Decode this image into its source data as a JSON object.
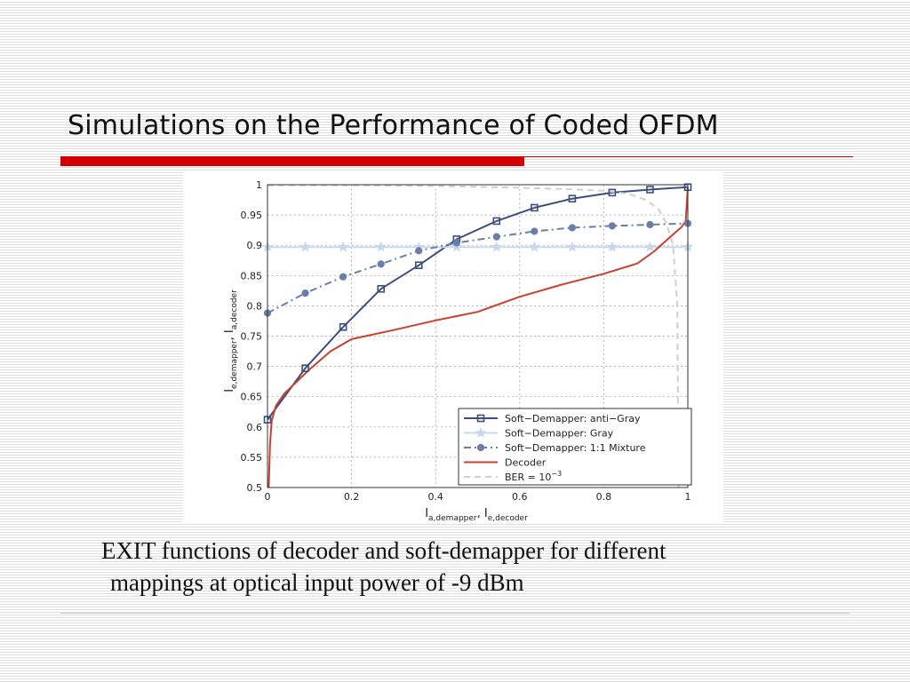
{
  "slide": {
    "title": "Simulations on the Performance of Coded OFDM",
    "caption_line1": "EXIT functions of decoder and soft-demapper for different",
    "caption_line2": "mappings at optical input power of -9 dBm"
  },
  "chart_data": {
    "type": "line",
    "xlabel": {
      "main1": "I",
      "sub1": "a,demapper",
      "sep": ", ",
      "main2": "I",
      "sub2": "e,decoder"
    },
    "ylabel": {
      "main1": "I",
      "sub1": "e,demapper",
      "sep": ", ",
      "main2": "I",
      "sub2": "a,decoder"
    },
    "xlim": [
      0,
      1
    ],
    "ylim": [
      0.5,
      1
    ],
    "x_ticks": [
      0,
      0.2,
      0.4,
      0.6,
      0.8,
      1
    ],
    "y_ticks": [
      0.5,
      0.55,
      0.6,
      0.65,
      0.7,
      0.75,
      0.8,
      0.85,
      0.9,
      0.95,
      1
    ],
    "x_tick_labels": [
      "0",
      "0.2",
      "0.4",
      "0.6",
      "0.8",
      "1"
    ],
    "y_tick_labels": [
      "0.5",
      "0.55",
      "0.6",
      "0.65",
      "0.7",
      "0.75",
      "0.8",
      "0.85",
      "0.9",
      "0.95",
      "1"
    ],
    "grid": true,
    "legend_position": "bottom-right",
    "series": [
      {
        "name": "Soft−Demapper: anti−Gray",
        "color": "#3d4f7c",
        "dash": "solid",
        "marker": "square",
        "x": [
          0,
          0.09,
          0.18,
          0.27,
          0.36,
          0.45,
          0.545,
          0.635,
          0.725,
          0.82,
          0.91,
          1.0
        ],
        "y": [
          0.612,
          0.697,
          0.765,
          0.828,
          0.867,
          0.91,
          0.94,
          0.962,
          0.977,
          0.987,
          0.992,
          0.996
        ]
      },
      {
        "name": "Soft−Demapper: Gray",
        "color": "#c9d8ea",
        "dash": "solid",
        "marker": "star",
        "x": [
          0,
          0.09,
          0.18,
          0.27,
          0.36,
          0.45,
          0.545,
          0.635,
          0.725,
          0.82,
          0.91,
          1.0
        ],
        "y": [
          0.897,
          0.897,
          0.897,
          0.897,
          0.897,
          0.897,
          0.897,
          0.897,
          0.897,
          0.897,
          0.897,
          0.897
        ]
      },
      {
        "name": "Soft−Demapper: 1:1 Mixture",
        "color": "#6b7fa6",
        "dash": "dashdot",
        "marker": "circle",
        "x": [
          0,
          0.09,
          0.18,
          0.27,
          0.36,
          0.45,
          0.545,
          0.635,
          0.725,
          0.82,
          0.91,
          1.0
        ],
        "y": [
          0.788,
          0.821,
          0.848,
          0.869,
          0.891,
          0.904,
          0.914,
          0.923,
          0.929,
          0.932,
          0.934,
          0.936
        ]
      },
      {
        "name": "Decoder",
        "color": "#c8402e",
        "dash": "solid",
        "marker": "none",
        "x": [
          0.003,
          0.006,
          0.01,
          0.02,
          0.04,
          0.07,
          0.1,
          0.15,
          0.2,
          0.3,
          0.4,
          0.5,
          0.6,
          0.7,
          0.8,
          0.88,
          0.92,
          0.96,
          0.985,
          0.995,
          1.0
        ],
        "y": [
          0.5,
          0.57,
          0.61,
          0.635,
          0.655,
          0.675,
          0.695,
          0.725,
          0.745,
          0.76,
          0.776,
          0.79,
          0.815,
          0.835,
          0.853,
          0.87,
          0.89,
          0.915,
          0.93,
          0.94,
          0.996
        ]
      },
      {
        "name": "BER = 10",
        "name_sup": "−3",
        "color": "#cfcfcf",
        "dash": "dashed",
        "marker": "none",
        "x": [
          0,
          0.2,
          0.4,
          0.6,
          0.7,
          0.8,
          0.86,
          0.9,
          0.93,
          0.95,
          0.965,
          0.975,
          0.978
        ],
        "y": [
          0.999,
          0.999,
          0.998,
          0.995,
          0.993,
          0.99,
          0.985,
          0.975,
          0.96,
          0.935,
          0.9,
          0.8,
          0.5
        ]
      }
    ]
  }
}
